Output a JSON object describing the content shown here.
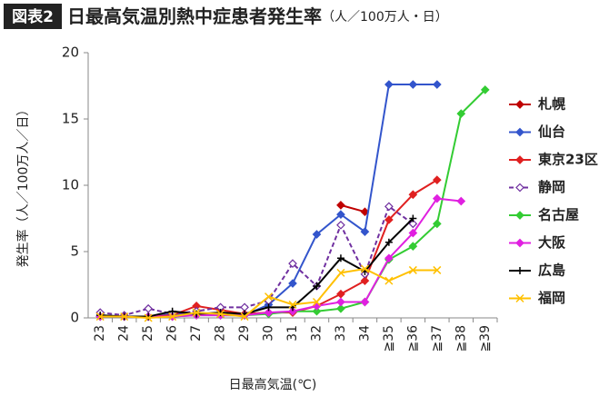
{
  "chart_data": {
    "type": "line",
    "figure_label": "図表2",
    "title": "日最高気温別熱中症患者発生率",
    "subtitle": "（人／100万人・日）",
    "x_label": "日最高気温(℃)",
    "y_label": "発生率（人／100万人／日）",
    "categories": [
      "23",
      "24",
      "25",
      "26",
      "27",
      "28",
      "29",
      "30",
      "31",
      "32",
      "33",
      "34",
      "≧35",
      "≧36",
      "≧37",
      "≧38",
      "≧39"
    ],
    "ylim": [
      0,
      20
    ],
    "yticks": [
      0,
      5,
      10,
      15,
      20
    ],
    "grid": false,
    "legend": "right",
    "series": [
      {
        "name": "札幌",
        "color": "#c00000",
        "marker": "diamond",
        "values": [
          null,
          null,
          null,
          null,
          null,
          null,
          null,
          null,
          null,
          null,
          8.5,
          8.0,
          null,
          null,
          null,
          null,
          null
        ]
      },
      {
        "name": "仙台",
        "color": "#3355cc",
        "marker": "diamond",
        "values": [
          0.2,
          0.1,
          0.1,
          0.3,
          0.3,
          0.2,
          0.2,
          1.0,
          2.6,
          6.3,
          7.8,
          6.5,
          17.6,
          17.6,
          17.6,
          null,
          null
        ]
      },
      {
        "name": "東京23区",
        "color": "#e02020",
        "marker": "diamond",
        "values": [
          0.1,
          0.1,
          0.1,
          0.2,
          0.9,
          0.6,
          0.3,
          0.4,
          0.4,
          0.9,
          1.8,
          2.8,
          7.4,
          9.3,
          10.4,
          null,
          null
        ]
      },
      {
        "name": "静岡",
        "color": "#7030a0",
        "marker": "open-diamond",
        "dash": true,
        "values": [
          0.4,
          0.2,
          0.7,
          0.3,
          0.5,
          0.8,
          0.8,
          1.3,
          4.1,
          2.4,
          7.0,
          3.3,
          8.4,
          7.1,
          null,
          null,
          null
        ]
      },
      {
        "name": "名古屋",
        "color": "#33cc33",
        "marker": "diamond",
        "values": [
          0.1,
          0.1,
          0.1,
          0.1,
          0.2,
          0.2,
          0.2,
          0.3,
          0.5,
          0.5,
          0.7,
          1.2,
          4.4,
          5.4,
          7.1,
          15.4,
          17.2
        ]
      },
      {
        "name": "大阪",
        "color": "#e020e0",
        "marker": "diamond",
        "values": [
          0.1,
          0.1,
          0.1,
          0.1,
          0.2,
          0.2,
          0.2,
          0.4,
          0.5,
          0.9,
          1.2,
          1.2,
          4.5,
          6.4,
          9.0,
          8.8,
          null
        ]
      },
      {
        "name": "広島",
        "color": "#000000",
        "marker": "plus",
        "values": [
          0.2,
          0.1,
          0.1,
          0.5,
          0.3,
          0.4,
          0.3,
          0.8,
          0.8,
          2.4,
          4.5,
          3.5,
          5.7,
          7.5,
          null,
          null,
          null
        ]
      },
      {
        "name": "福岡",
        "color": "#ffc000",
        "marker": "cross",
        "values": [
          0.1,
          0.1,
          0.0,
          0.1,
          0.4,
          0.3,
          0.1,
          1.6,
          1.0,
          1.2,
          3.4,
          3.7,
          2.8,
          3.6,
          3.6,
          null,
          null
        ]
      }
    ]
  }
}
